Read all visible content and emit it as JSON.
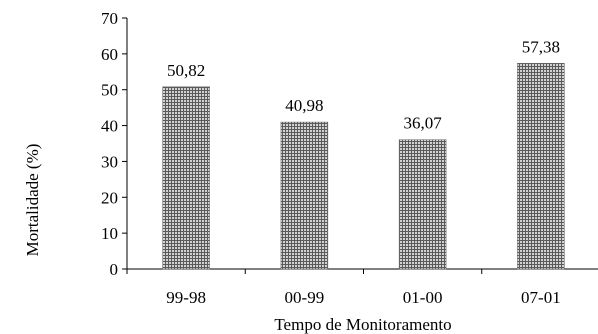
{
  "chart_data": {
    "type": "bar",
    "categories": [
      "99-98",
      "00-99",
      "01-00",
      "07-01"
    ],
    "values": [
      50.82,
      40.98,
      36.07,
      57.38
    ],
    "value_labels": [
      "50,82",
      "40,98",
      "36,07",
      "57,38"
    ],
    "title": "",
    "xlabel": "Tempo de Monitoramento",
    "ylabel": "Mortalidade (%)",
    "ylim": [
      0,
      70
    ],
    "yticks": [
      0,
      10,
      20,
      30,
      40,
      50,
      60,
      70
    ],
    "grid": false,
    "legend": "none",
    "bar_color": "#8a8a8a",
    "bar_pattern": "fine-crosshatch"
  }
}
